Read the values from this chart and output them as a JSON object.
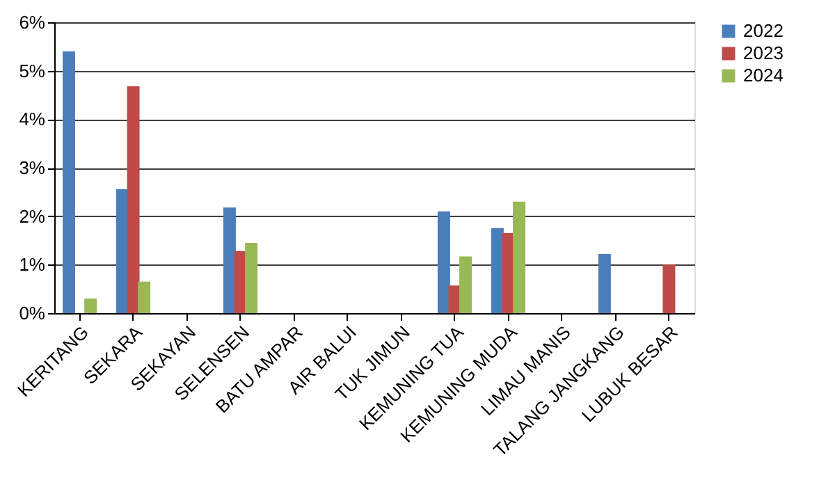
{
  "chart_data": {
    "type": "bar",
    "categories": [
      "KERITANG",
      "SEKARA",
      "SEKAYAN",
      "SELENSEN",
      "BATU AMPAR",
      "AIR BALUI",
      "TUK JIMUN",
      "KEMUNING TUA",
      "KEMUNING MUDA",
      "LIMAU MANIS",
      "TALANG JANGKANG",
      "LUBUK BESAR"
    ],
    "series": [
      {
        "name": "2022",
        "color": "#4a7ebb",
        "values": [
          5.4,
          2.56,
          null,
          2.18,
          null,
          null,
          null,
          2.1,
          1.75,
          null,
          1.22,
          null
        ]
      },
      {
        "name": "2023",
        "color": "#be4b48",
        "values": [
          null,
          4.68,
          null,
          1.28,
          null,
          null,
          null,
          0.57,
          1.65,
          null,
          null,
          1.0
        ]
      },
      {
        "name": "2024",
        "color": "#98b954",
        "values": [
          0.3,
          0.65,
          null,
          1.45,
          null,
          null,
          null,
          1.17,
          2.3,
          null,
          null,
          null
        ]
      }
    ],
    "ylim": [
      0,
      6
    ],
    "yticks": [
      {
        "value": 0,
        "label": "0%"
      },
      {
        "value": 1,
        "label": "1%"
      },
      {
        "value": 2,
        "label": "2%"
      },
      {
        "value": 3,
        "label": "3%"
      },
      {
        "value": 4,
        "label": "4%"
      },
      {
        "value": 5,
        "label": "5%"
      },
      {
        "value": 6,
        "label": "6%"
      }
    ],
    "grid": "y",
    "legend": "right"
  }
}
